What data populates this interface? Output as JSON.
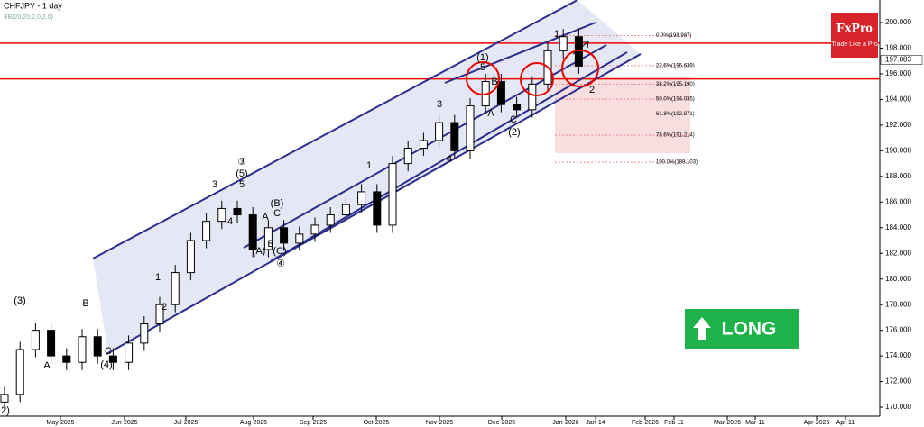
{
  "chart_data": {
    "type": "candlestick",
    "title": "CHFJPY - 1 day",
    "subtitle": "BB(20,20,2,0,2,0)",
    "categories": [
      null,
      null,
      null,
      null,
      null,
      null,
      null,
      null,
      null,
      null,
      null,
      null,
      null,
      null,
      null,
      null,
      null,
      null,
      null,
      null,
      null,
      null,
      null,
      null,
      null,
      null,
      null,
      null,
      null,
      null,
      null,
      null,
      null,
      null,
      null,
      null,
      null,
      null
    ],
    "open": [
      170.4,
      171,
      174.5,
      176,
      174,
      173.5,
      175.5,
      174,
      173.5,
      175,
      176.5,
      178,
      180.5,
      183,
      184.5,
      185.5,
      185,
      182.3,
      184,
      182.8,
      183.5,
      184.2,
      185,
      185.8,
      186.8,
      184.2,
      189,
      190.2,
      190.8,
      192.2,
      190,
      193.5,
      195.4,
      193.6,
      193.2,
      195.2,
      197.8,
      198.9
    ],
    "high": [
      171.6,
      175.1,
      176.6,
      176.6,
      174.6,
      176.1,
      176.1,
      174.6,
      175.6,
      177.1,
      178.6,
      181.1,
      183.6,
      185.1,
      186.1,
      186.1,
      185.6,
      184.6,
      184.6,
      184.1,
      184.8,
      185.6,
      186.4,
      187.4,
      187.4,
      189.6,
      190.8,
      191.4,
      192.8,
      192.8,
      194.1,
      196,
      196,
      194.2,
      195.8,
      198.4,
      199.5,
      199.5
    ],
    "low": [
      169.8,
      170.4,
      173.9,
      173.4,
      172.9,
      172.9,
      173.4,
      172.9,
      172.9,
      174.4,
      175.9,
      177.4,
      179.9,
      182.4,
      183.9,
      184.4,
      181.7,
      181.7,
      182.2,
      182.2,
      182.9,
      183.6,
      184.4,
      185.2,
      183.6,
      183.6,
      188.4,
      189.6,
      190.2,
      189.4,
      189.4,
      192.9,
      193,
      192.6,
      192.6,
      194.6,
      197.2,
      196
    ],
    "close": [
      171,
      174.5,
      176,
      174,
      173.5,
      175.5,
      174,
      173.5,
      175,
      176.5,
      178,
      180.5,
      183,
      184.5,
      185.5,
      185,
      182.3,
      184,
      182.8,
      183.5,
      184.2,
      185,
      185.8,
      186.8,
      184.2,
      189,
      190.2,
      190.8,
      192.2,
      190,
      193.5,
      195.4,
      193.6,
      193.2,
      195.2,
      197.8,
      198.9,
      196.6
    ],
    "up_color": "#ffffff",
    "down_color": "#000000",
    "ylim": [
      169.3,
      201.76
    ],
    "yticks": [
      {
        "value": 170,
        "label": "170.000"
      },
      {
        "value": 172,
        "label": "172.000"
      },
      {
        "value": 174,
        "label": "174.000"
      },
      {
        "value": 176,
        "label": "176.000"
      },
      {
        "value": 178,
        "label": "178.000"
      },
      {
        "value": 180,
        "label": "180.000"
      },
      {
        "value": 182,
        "label": "182.000"
      },
      {
        "value": 184,
        "label": "184.000"
      },
      {
        "value": 186,
        "label": "186.000"
      },
      {
        "value": 188,
        "label": "188.000"
      },
      {
        "value": 190,
        "label": "190.000"
      },
      {
        "value": 192,
        "label": "192.000"
      },
      {
        "value": 194,
        "label": "194.000"
      },
      {
        "value": 196,
        "label": "196.000"
      },
      {
        "value": 198,
        "label": "198.000"
      },
      {
        "value": 200,
        "label": "200.000"
      }
    ],
    "x_axis_labels": [
      "May-2025",
      "Jun-2025",
      "Jul-2025",
      "Aug-2025",
      "Sep-2025",
      "Oct-2025",
      "Nov-2025",
      "Dec-2025",
      "Jan-2026",
      "Jan-14",
      "Feb-2026",
      "Feb-11",
      "Mar-2026",
      "Mar-11",
      "Apr-2026",
      "Apr-11"
    ],
    "current_price": 197.083,
    "horizontal_lines": [
      198.4,
      195.6
    ],
    "fib_levels": [
      {
        "value": 198.987,
        "label": "0.0%(198.987)"
      },
      {
        "value": 196.639,
        "label": "23.6%(196.639)"
      },
      {
        "value": 195.19,
        "label": "38.2%(195.190)"
      },
      {
        "value": 194.035,
        "label": "50.0%(194.035)"
      },
      {
        "value": 192.871,
        "label": "61.8%(192.871)"
      },
      {
        "value": 191.214,
        "label": "78.6%(191.214)"
      },
      {
        "value": 189.103,
        "label": "100.0%(189.103)"
      }
    ],
    "annotations": [
      "(3)",
      "A",
      "B",
      "C",
      "(4)",
      "1",
      "2",
      "3",
      "5",
      "(5)",
      "③",
      "4",
      "A",
      "(A)",
      "B",
      "(B)",
      "C",
      "(C)",
      "④",
      "1",
      "2",
      "3",
      "4",
      "(1)",
      "5",
      "B",
      "A",
      "C",
      "(2)",
      "1",
      "2",
      "2)"
    ],
    "signal": "LONG",
    "logo": {
      "name": "FxPro",
      "tagline": "Trade Like a Pro"
    }
  }
}
